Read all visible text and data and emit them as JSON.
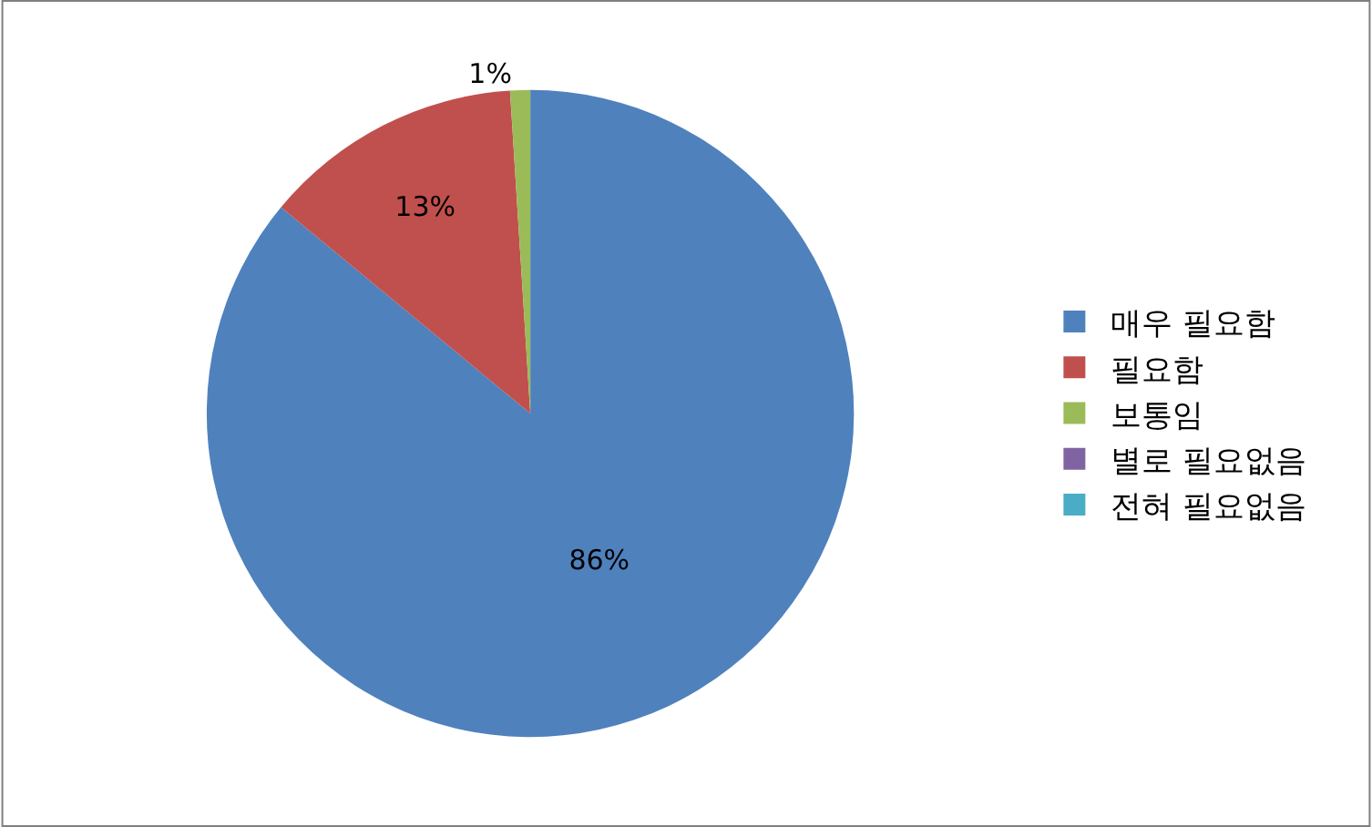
{
  "chart_data": {
    "type": "pie",
    "categories": [
      "매우 필요함",
      "필요함",
      "보통임",
      "별로 필요없음",
      "전혀 필요없음"
    ],
    "values": [
      86,
      13,
      1,
      0,
      0
    ],
    "colors": [
      "#4f81bd",
      "#c0504d",
      "#9bbb59",
      "#8064a2",
      "#4bacc6"
    ],
    "value_labels": [
      "86%",
      "13%",
      "1%",
      null,
      null
    ],
    "legend": "right"
  }
}
